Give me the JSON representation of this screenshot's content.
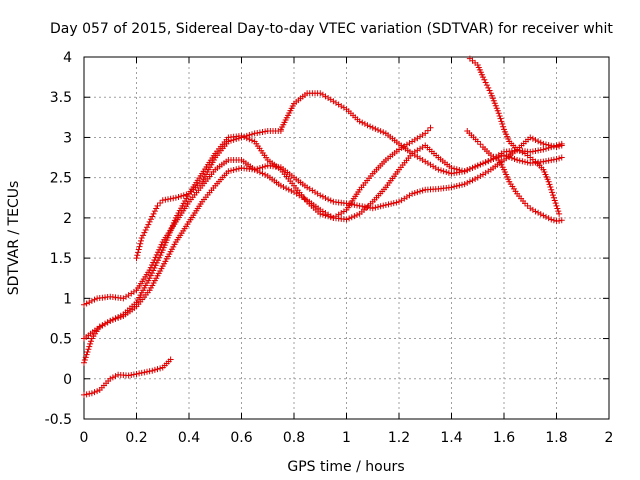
{
  "chart_data": {
    "type": "scatter",
    "title": "Day 057 of 2015, Sidereal Day-to-day VTEC variation (SDTVAR) for receiver whit",
    "xlabel": "GPS time / hours",
    "ylabel": "SDTVAR / TECUs",
    "xlim": [
      0,
      2
    ],
    "ylim": [
      -0.5,
      4
    ],
    "x_ticks": [
      0,
      0.2,
      0.4,
      0.6,
      0.8,
      1,
      1.2,
      1.4,
      1.6,
      1.8,
      2
    ],
    "x_tick_labels": [
      "0",
      "0.2",
      "0.4",
      "0.6",
      "0.8",
      "1",
      "1.2",
      "1.4",
      "1.6",
      "1.8",
      "2"
    ],
    "y_ticks": [
      -0.5,
      0,
      0.5,
      1,
      1.5,
      2,
      2.5,
      3,
      3.5,
      4
    ],
    "y_tick_labels": [
      "-0.5",
      "0",
      "0.5",
      "1",
      "1.5",
      "2",
      "2.5",
      "3",
      "3.5",
      "4"
    ],
    "grid": true,
    "marker": "+",
    "color": "#e00000",
    "series": [
      {
        "x": [
          0,
          0.05,
          0.1,
          0.15,
          0.2,
          0.25,
          0.3,
          0.35,
          0.4,
          0.45,
          0.5,
          0.55,
          0.6,
          0.65,
          0.7,
          0.75,
          0.8,
          0.85,
          0.9,
          0.95,
          1.0,
          1.05,
          1.1,
          1.15,
          1.2,
          1.25,
          1.3,
          1.35,
          1.4,
          1.45,
          1.5,
          1.55,
          1.6,
          1.65,
          1.7,
          1.75,
          1.8,
          1.82
        ],
        "y": [
          0.92,
          1.0,
          1.02,
          1.0,
          1.1,
          1.35,
          1.7,
          1.95,
          2.2,
          2.4,
          2.6,
          2.72,
          2.72,
          2.6,
          2.52,
          2.4,
          2.32,
          2.22,
          2.1,
          2.0,
          1.98,
          2.05,
          2.2,
          2.38,
          2.6,
          2.8,
          2.9,
          2.75,
          2.62,
          2.58,
          2.65,
          2.72,
          2.78,
          2.72,
          2.68,
          2.7,
          2.73,
          2.75
        ]
      },
      {
        "x": [
          0,
          0.03,
          0.06,
          0.1,
          0.15,
          0.2,
          0.25,
          0.3,
          0.35,
          0.4,
          0.45,
          0.5,
          0.55,
          0.6,
          0.65,
          0.7,
          0.75,
          0.8,
          0.85,
          0.9,
          0.95,
          1.0,
          1.05,
          1.1,
          1.15,
          1.2,
          1.25,
          1.3,
          1.35,
          1.4,
          1.45,
          1.5,
          1.55,
          1.6,
          1.65,
          1.7,
          1.75,
          1.8,
          1.82
        ],
        "y": [
          0.2,
          0.5,
          0.65,
          0.72,
          0.78,
          0.9,
          1.1,
          1.4,
          1.7,
          1.95,
          2.2,
          2.4,
          2.58,
          2.62,
          2.6,
          2.65,
          2.63,
          2.5,
          2.38,
          2.28,
          2.2,
          2.18,
          2.15,
          2.12,
          2.16,
          2.2,
          2.3,
          2.35,
          2.36,
          2.38,
          2.42,
          2.5,
          2.6,
          2.72,
          2.85,
          3.0,
          2.92,
          2.88,
          2.9
        ]
      },
      {
        "x": [
          0,
          0.05,
          0.1,
          0.15,
          0.2,
          0.25,
          0.3,
          0.35,
          0.4,
          0.45,
          0.5,
          0.55,
          0.6,
          0.65,
          0.7,
          0.75,
          0.8,
          0.85,
          0.9,
          0.95,
          1.0,
          1.05,
          1.1,
          1.15,
          1.2,
          1.25,
          1.3,
          1.32
        ],
        "y": [
          0.5,
          0.62,
          0.72,
          0.8,
          0.95,
          1.25,
          1.6,
          2.0,
          2.3,
          2.55,
          2.8,
          3.0,
          3.02,
          2.95,
          2.72,
          2.6,
          2.4,
          2.2,
          2.05,
          2.0,
          2.1,
          2.35,
          2.55,
          2.72,
          2.85,
          2.95,
          3.05,
          3.12
        ]
      },
      {
        "x": [
          0.2,
          0.22,
          0.25,
          0.28,
          0.3,
          0.35,
          0.4,
          0.45,
          0.5,
          0.55,
          0.6,
          0.65,
          0.7,
          0.75
        ],
        "y": [
          1.5,
          1.75,
          1.95,
          2.15,
          2.22,
          2.25,
          2.3,
          2.45,
          2.75,
          2.95,
          3.0,
          3.05,
          3.08,
          3.08
        ]
      },
      {
        "x": [
          0.75,
          0.8,
          0.85,
          0.9,
          0.95,
          1.0,
          1.05,
          1.1,
          1.15,
          1.2,
          1.25,
          1.3,
          1.35,
          1.4,
          1.45,
          1.5,
          1.55,
          1.6,
          1.65,
          1.7,
          1.75,
          1.8,
          1.82
        ],
        "y": [
          3.1,
          3.42,
          3.55,
          3.55,
          3.45,
          3.35,
          3.2,
          3.12,
          3.05,
          2.92,
          2.8,
          2.7,
          2.6,
          2.55,
          2.58,
          2.65,
          2.72,
          2.82,
          2.84,
          2.82,
          2.85,
          2.9,
          2.92
        ]
      },
      {
        "x": [
          1.46,
          1.5,
          1.52,
          1.55,
          1.58,
          1.6,
          1.62,
          1.65,
          1.68,
          1.7,
          1.72,
          1.75,
          1.78,
          1.8,
          1.82
        ],
        "y": [
          3.08,
          2.95,
          2.88,
          2.78,
          2.72,
          2.6,
          2.45,
          2.3,
          2.18,
          2.12,
          2.08,
          2.03,
          1.98,
          1.96,
          1.97
        ]
      },
      {
        "x": [
          1.47,
          1.5,
          1.52,
          1.55,
          1.58,
          1.6,
          1.62,
          1.65,
          1.68,
          1.7,
          1.72,
          1.75,
          1.77,
          1.79,
          1.81
        ],
        "y": [
          3.98,
          3.9,
          3.75,
          3.55,
          3.3,
          3.1,
          2.95,
          2.85,
          2.8,
          2.75,
          2.7,
          2.6,
          2.45,
          2.25,
          2.05
        ]
      },
      {
        "x": [
          0,
          0.03,
          0.06,
          0.1,
          0.13,
          0.17,
          0.2,
          0.23,
          0.26,
          0.3,
          0.33
        ],
        "y": [
          -0.2,
          -0.18,
          -0.14,
          0.0,
          0.05,
          0.04,
          0.06,
          0.08,
          0.1,
          0.14,
          0.24
        ]
      }
    ]
  }
}
